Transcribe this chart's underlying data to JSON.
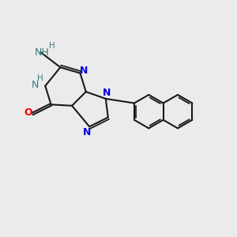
{
  "bg_color": "#ebebeb",
  "bond_color": "#1a1a1a",
  "N_color": "#0000dd",
  "NH_color": "#3a7a7a",
  "O_color": "#ee0000",
  "lw": 1.5,
  "figsize": [
    3.0,
    3.0
  ],
  "dpi": 100,
  "xlim": [
    0,
    10
  ],
  "ylim": [
    0,
    10
  ]
}
